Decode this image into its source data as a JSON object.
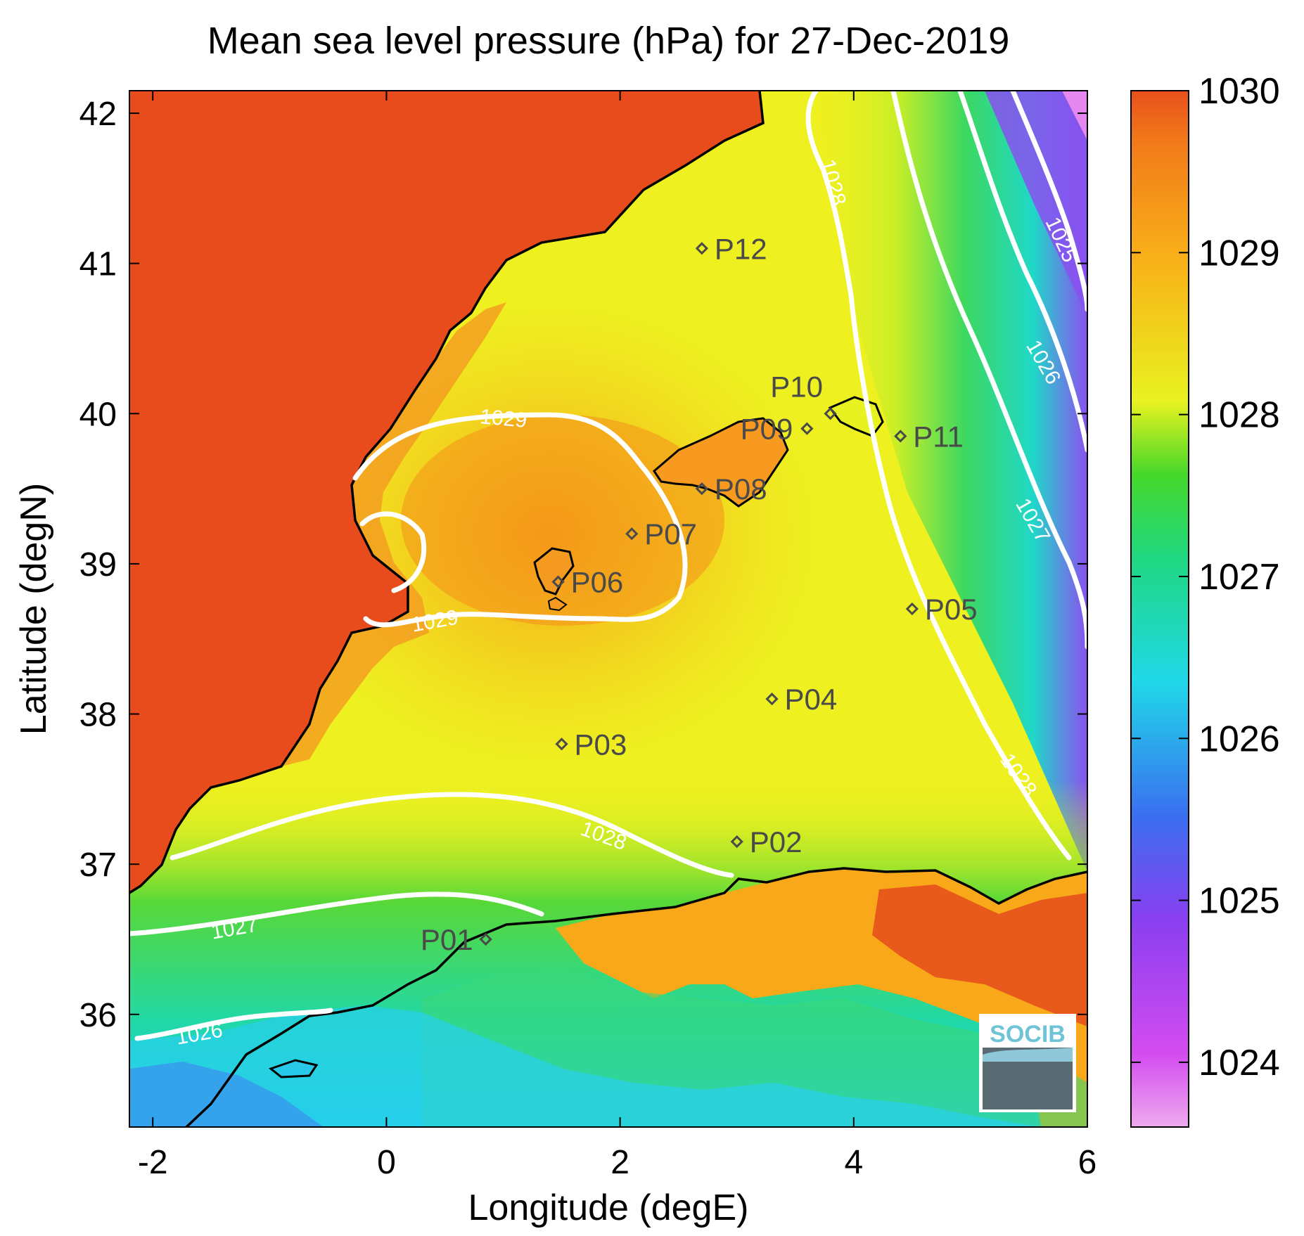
{
  "title": "Mean sea level pressure (hPa) for 27-Dec-2019",
  "xlabel": "Longitude (degE)",
  "ylabel": "Latitude (degN)",
  "x_ticks": [
    "-2",
    "0",
    "2",
    "4",
    "6"
  ],
  "y_ticks": [
    "36",
    "37",
    "38",
    "39",
    "40",
    "41",
    "42"
  ],
  "colorbar": {
    "ticks": [
      "1024",
      "1025",
      "1026",
      "1027",
      "1028",
      "1029",
      "1030"
    ],
    "range": [
      1023.6,
      1030
    ],
    "colors": [
      "#eeaaee",
      "#d44cf0",
      "#8a3ff0",
      "#3a6ff0",
      "#20d8e8",
      "#20d880",
      "#46d82a",
      "#e8f220",
      "#f8b418",
      "#e8501c"
    ]
  },
  "contour_labels": [
    {
      "id": "c1",
      "text": "1029"
    },
    {
      "id": "c2",
      "text": "1029"
    },
    {
      "id": "c3",
      "text": "1028"
    },
    {
      "id": "c4",
      "text": "1028"
    },
    {
      "id": "c5",
      "text": "1028"
    },
    {
      "id": "c6",
      "text": "1027"
    },
    {
      "id": "c7",
      "text": "1027"
    },
    {
      "id": "c8",
      "text": "1026"
    },
    {
      "id": "c9",
      "text": "1026"
    },
    {
      "id": "c10",
      "text": "1025"
    }
  ],
  "stations": [
    {
      "name": "P01",
      "lon": 0.85,
      "lat": 36.5
    },
    {
      "name": "P02",
      "lon": 3.0,
      "lat": 37.15
    },
    {
      "name": "P03",
      "lon": 1.5,
      "lat": 37.8
    },
    {
      "name": "P04",
      "lon": 3.3,
      "lat": 38.1
    },
    {
      "name": "P05",
      "lon": 4.5,
      "lat": 38.7
    },
    {
      "name": "P06",
      "lon": 1.47,
      "lat": 38.88
    },
    {
      "name": "P07",
      "lon": 2.1,
      "lat": 39.2
    },
    {
      "name": "P08",
      "lon": 2.7,
      "lat": 39.5
    },
    {
      "name": "P09",
      "lon": 3.6,
      "lat": 39.9
    },
    {
      "name": "P10",
      "lon": 3.8,
      "lat": 40.0
    },
    {
      "name": "P11",
      "lon": 4.4,
      "lat": 39.85
    },
    {
      "name": "P12",
      "lon": 2.7,
      "lat": 41.1
    }
  ],
  "logo": {
    "text": "SOCIB"
  }
}
